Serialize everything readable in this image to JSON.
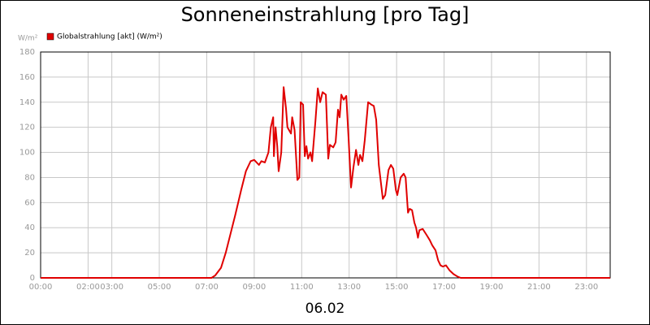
{
  "chart_data": {
    "type": "line",
    "title": "Sonneneinstrahlung [pro Tag]",
    "y_unit": "W/m²",
    "x_label": "06.02",
    "xlim": [
      0,
      24
    ],
    "xticks": [
      {
        "value": 0,
        "label": "00:00"
      },
      {
        "value": 2,
        "label": "02:00"
      },
      {
        "value": 3,
        "label": "03:00"
      },
      {
        "value": 5,
        "label": "05:00"
      },
      {
        "value": 7,
        "label": "07:00"
      },
      {
        "value": 9,
        "label": "09:00"
      },
      {
        "value": 11,
        "label": "11:00"
      },
      {
        "value": 13,
        "label": "13:00"
      },
      {
        "value": 15,
        "label": "15:00"
      },
      {
        "value": 17,
        "label": "17:00"
      },
      {
        "value": 19,
        "label": "19:00"
      },
      {
        "value": 21,
        "label": "21:00"
      },
      {
        "value": 23,
        "label": "23:00"
      }
    ],
    "ylim": [
      0,
      180
    ],
    "yticks": [
      0,
      20,
      40,
      60,
      80,
      100,
      120,
      140,
      160,
      180
    ],
    "grid": true,
    "legend": "top-left",
    "x": [
      0,
      7.2,
      7.36,
      7.6,
      7.8,
      8.0,
      8.2,
      8.45,
      8.65,
      8.85,
      9.0,
      9.2,
      9.3,
      9.45,
      9.6,
      9.7,
      9.8,
      9.83,
      9.9,
      9.97,
      10.03,
      10.14,
      10.24,
      10.34,
      10.4,
      10.55,
      10.6,
      10.7,
      10.82,
      10.9,
      10.96,
      11.06,
      11.13,
      11.2,
      11.27,
      11.37,
      11.44,
      11.58,
      11.68,
      11.78,
      11.88,
      12.02,
      12.12,
      12.19,
      12.33,
      12.43,
      12.53,
      12.6,
      12.67,
      12.77,
      12.88,
      12.98,
      13.08,
      13.18,
      13.29,
      13.39,
      13.46,
      13.56,
      13.66,
      13.8,
      13.94,
      14.04,
      14.14,
      14.25,
      14.42,
      14.52,
      14.66,
      14.76,
      14.86,
      14.97,
      15.03,
      15.17,
      15.3,
      15.38,
      15.48,
      15.55,
      15.65,
      15.75,
      15.82,
      15.9,
      15.96,
      16.1,
      16.27,
      16.4,
      16.5,
      16.64,
      16.75,
      16.85,
      16.95,
      17.08,
      17.23,
      17.4,
      17.57,
      17.7,
      24
    ],
    "series": [
      {
        "name": "Globalstrahlung [akt] (W/m²)",
        "color": "#e00000",
        "values": [
          0,
          0,
          2,
          8,
          20,
          35,
          50,
          70,
          85,
          93,
          94,
          90,
          93,
          92,
          100,
          120,
          128,
          97,
          120,
          105,
          85,
          100,
          152,
          135,
          120,
          115,
          128,
          118,
          78,
          80,
          140,
          138,
          97,
          105,
          95,
          100,
          93,
          125,
          151,
          140,
          148,
          146,
          95,
          106,
          104,
          108,
          134,
          128,
          146,
          142,
          145,
          110,
          72,
          88,
          102,
          90,
          98,
          93,
          110,
          140,
          138,
          137,
          126,
          90,
          63,
          66,
          86,
          90,
          87,
          70,
          66,
          80,
          83,
          80,
          52,
          55,
          54,
          44,
          40,
          32,
          38,
          39,
          34,
          30,
          26,
          22,
          14,
          10,
          9,
          10,
          6,
          3,
          1,
          0,
          0
        ]
      }
    ]
  }
}
